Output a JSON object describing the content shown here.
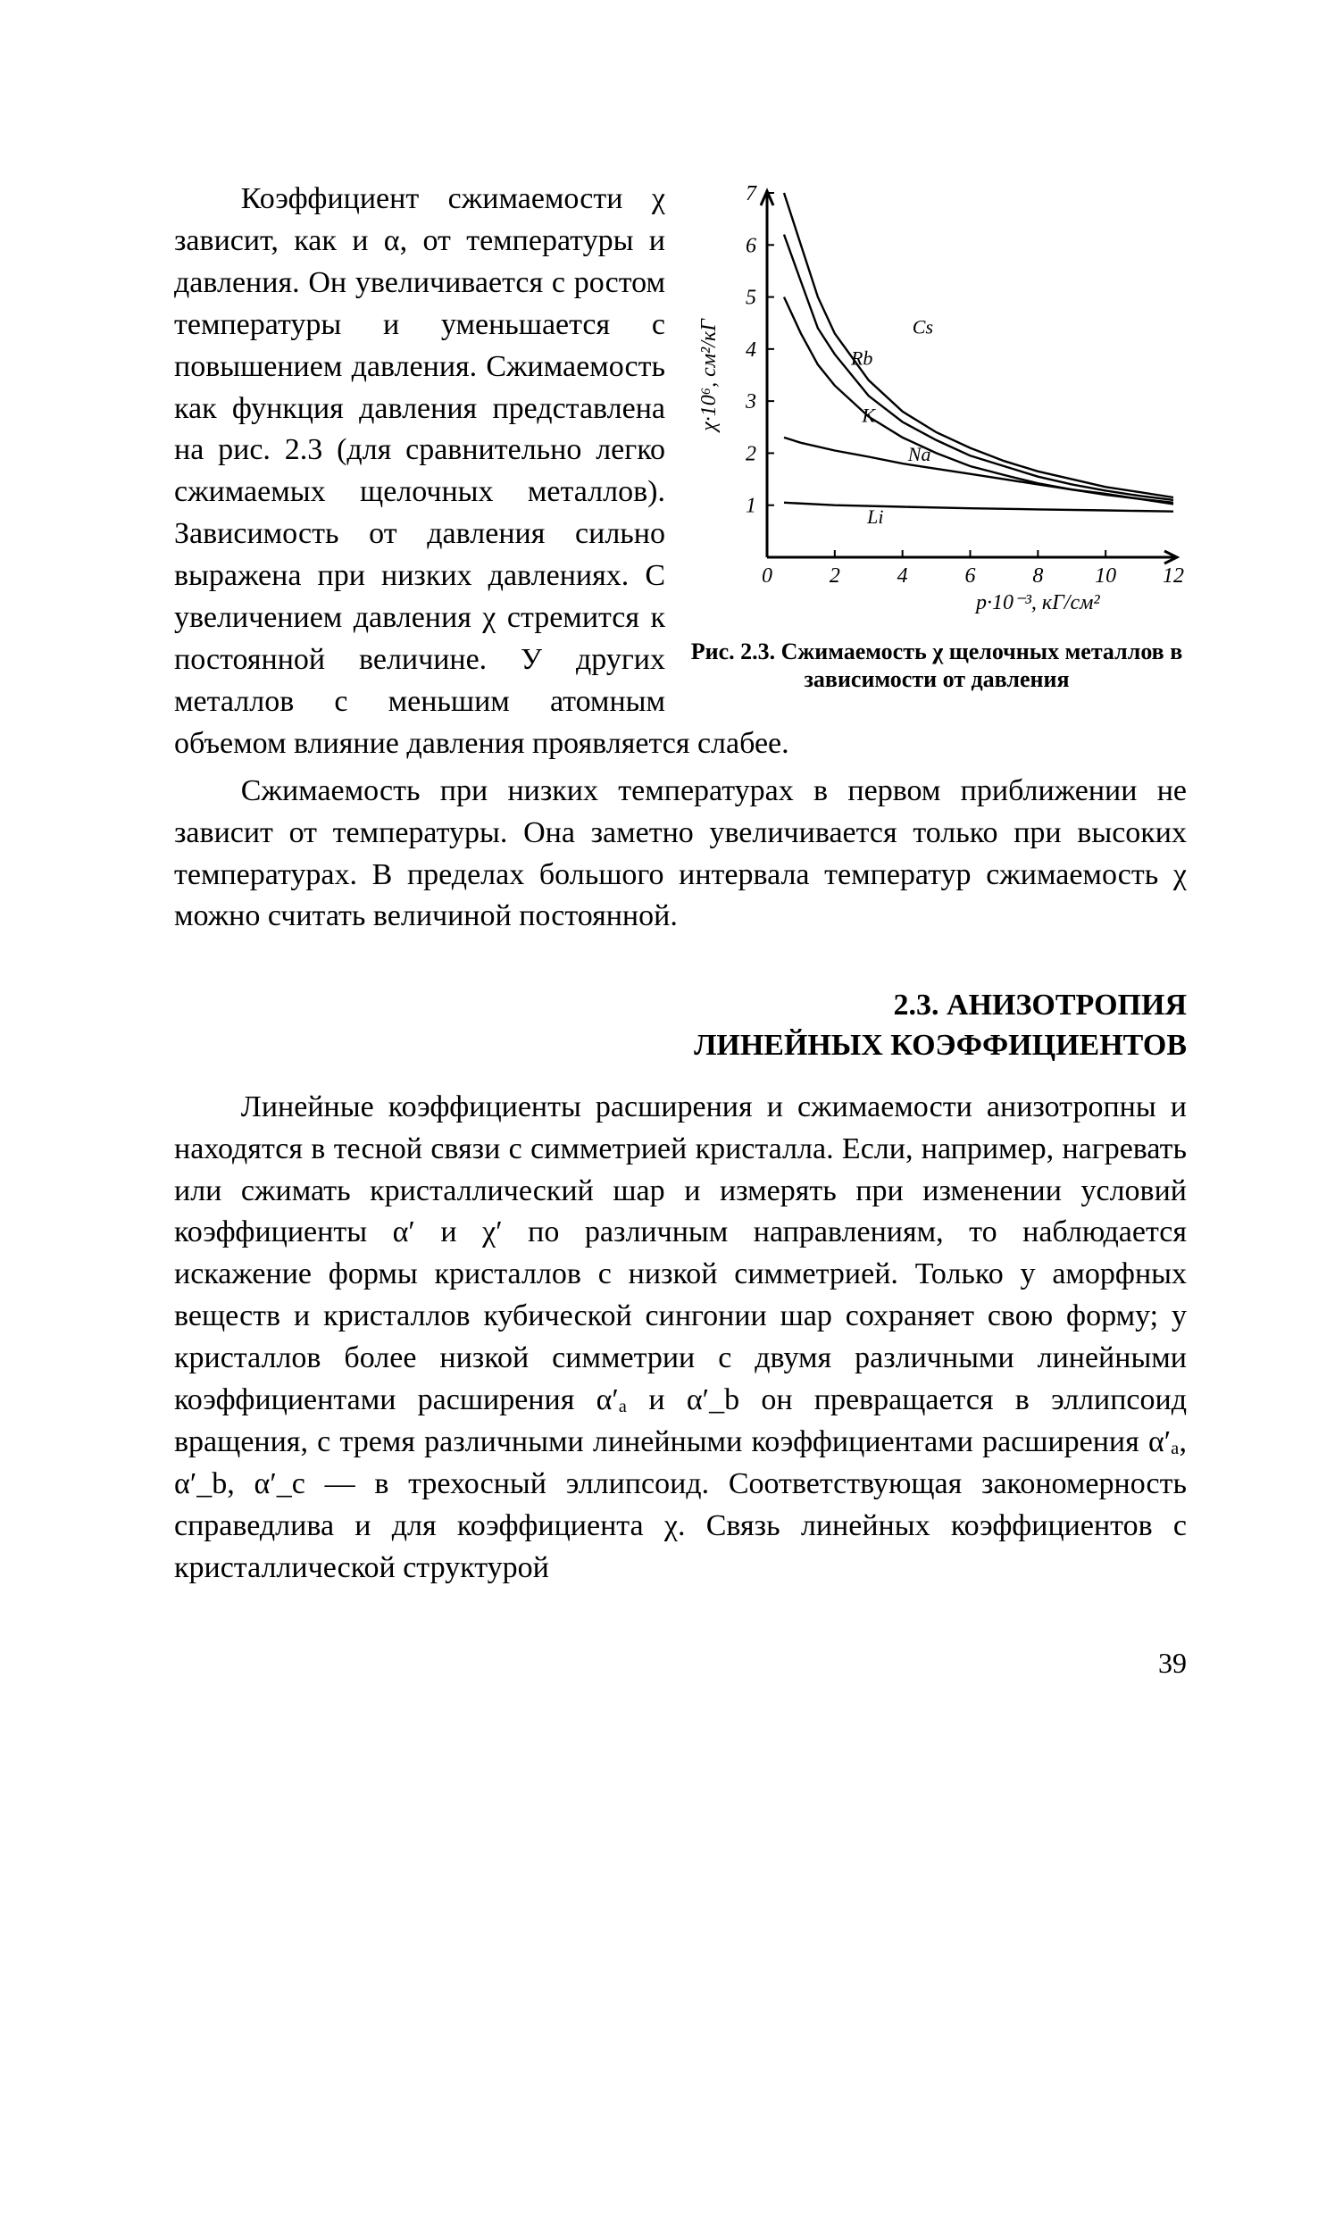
{
  "para1": "Коэффициент сжимаемости χ зависит, как и α, от температуры и давления. Он увеличивается с ростом температуры и уменьшается с повышением давления. Сжимаемость как функция давления представлена на рис. 2.3 (для сравнительно легко сжимаемых щелочных металлов). Зависимость от давления сильно выражена при низких давлениях. С увеличением давления χ стремится к постоянной величине. У других металлов с меньшим атомным объемом влияние давления проявляется слабее.",
  "para2": "Сжимаемость при низких температурах в первом приближении не зависит от температуры. Она заметно увеличивается только при высоких температурах. В пределах большого интервала температур сжимаемость χ можно считать величиной постоянной.",
  "section_title_l1": "2.3. АНИЗОТРОПИЯ",
  "section_title_l2": "ЛИНЕЙНЫХ КОЭФФИЦИЕНТОВ",
  "para3": "Линейные коэффициенты расширения и сжимаемости анизотропны и находятся в тесной связи с симметрией кристалла. Если, например, нагревать или сжимать кристаллический шар и измерять при изменении условий коэффициенты α′ и χ′ по различным направлениям, то наблюдается искажение формы кристаллов с низкой симметрией. Только у аморфных веществ и кристаллов кубической сингонии шар сохраняет свою форму; у кристаллов более низкой симметрии с двумя различными линейными коэффициентами расширения α′ₐ и α′_b он превращается в эллипсоид вращения, с тремя различными линейными коэффициентами расширения α′ₐ, α′_b, α′_c — в трехосный эллипсоид. Соответствующая закономерность справедлива и для коэффициента χ. Связь линейных коэффициентов с кристаллической структурой",
  "page_num": "39",
  "figure": {
    "caption": "Рис. 2.3. Сжимаемость χ щелочных металлов в зависимости от давления",
    "type": "line",
    "xlim": [
      0,
      12
    ],
    "ylim": [
      0,
      7
    ],
    "xticks": [
      0,
      2,
      4,
      6,
      8,
      10,
      12
    ],
    "yticks": [
      1,
      2,
      3,
      4,
      5,
      6,
      7
    ],
    "x_label": "p·10⁻³, кГ/см²",
    "y_label": "χ·10⁶, см²/кГ",
    "line_color": "#000000",
    "line_width": 2.4,
    "axis_width": 3,
    "tick_len": 8,
    "font_size_axis": 24,
    "font_size_series": 22,
    "series": [
      {
        "name": "Cs",
        "label_xy": [
          4.6,
          4.3
        ],
        "points": [
          [
            0.5,
            7.0
          ],
          [
            1.0,
            6.0
          ],
          [
            1.5,
            5.0
          ],
          [
            2.0,
            4.3
          ],
          [
            3.0,
            3.4
          ],
          [
            4.0,
            2.8
          ],
          [
            5.0,
            2.4
          ],
          [
            6.0,
            2.1
          ],
          [
            7.0,
            1.85
          ],
          [
            8.0,
            1.65
          ],
          [
            9.0,
            1.5
          ],
          [
            10.0,
            1.35
          ],
          [
            11.0,
            1.25
          ],
          [
            12.0,
            1.15
          ]
        ]
      },
      {
        "name": "Rb",
        "label_xy": [
          2.8,
          3.7
        ],
        "points": [
          [
            0.5,
            6.2
          ],
          [
            1.0,
            5.3
          ],
          [
            1.5,
            4.4
          ],
          [
            2.0,
            3.9
          ],
          [
            3.0,
            3.1
          ],
          [
            4.0,
            2.6
          ],
          [
            5.0,
            2.25
          ],
          [
            6.0,
            1.95
          ],
          [
            7.0,
            1.75
          ],
          [
            8.0,
            1.55
          ],
          [
            9.0,
            1.4
          ],
          [
            10.0,
            1.28
          ],
          [
            11.0,
            1.18
          ],
          [
            12.0,
            1.1
          ]
        ]
      },
      {
        "name": "K",
        "label_xy": [
          3.0,
          2.6
        ],
        "points": [
          [
            0.5,
            5.0
          ],
          [
            1.0,
            4.3
          ],
          [
            1.5,
            3.7
          ],
          [
            2.0,
            3.3
          ],
          [
            3.0,
            2.7
          ],
          [
            4.0,
            2.3
          ],
          [
            5.0,
            2.0
          ],
          [
            6.0,
            1.75
          ],
          [
            7.0,
            1.58
          ],
          [
            8.0,
            1.42
          ],
          [
            9.0,
            1.3
          ],
          [
            10.0,
            1.2
          ],
          [
            11.0,
            1.12
          ],
          [
            12.0,
            1.05
          ]
        ]
      },
      {
        "name": "Na",
        "label_xy": [
          4.5,
          1.85
        ],
        "points": [
          [
            0.5,
            2.3
          ],
          [
            1.0,
            2.2
          ],
          [
            2.0,
            2.05
          ],
          [
            3.0,
            1.93
          ],
          [
            4.0,
            1.8
          ],
          [
            5.0,
            1.7
          ],
          [
            6.0,
            1.6
          ],
          [
            7.0,
            1.5
          ],
          [
            8.0,
            1.4
          ],
          [
            9.0,
            1.3
          ],
          [
            10.0,
            1.22
          ],
          [
            11.0,
            1.12
          ],
          [
            12.0,
            1.02
          ]
        ]
      },
      {
        "name": "Li",
        "label_xy": [
          3.2,
          0.65
        ],
        "points": [
          [
            0.5,
            1.05
          ],
          [
            2.0,
            1.0
          ],
          [
            4.0,
            0.97
          ],
          [
            6.0,
            0.94
          ],
          [
            8.0,
            0.92
          ],
          [
            10.0,
            0.9
          ],
          [
            12.0,
            0.88
          ]
        ]
      }
    ]
  }
}
